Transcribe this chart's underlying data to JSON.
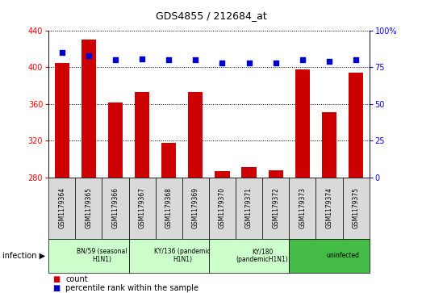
{
  "title": "GDS4855 / 212684_at",
  "samples": [
    "GSM1179364",
    "GSM1179365",
    "GSM1179366",
    "GSM1179367",
    "GSM1179368",
    "GSM1179369",
    "GSM1179370",
    "GSM1179371",
    "GSM1179372",
    "GSM1179373",
    "GSM1179374",
    "GSM1179375"
  ],
  "counts": [
    405,
    430,
    362,
    373,
    318,
    373,
    287,
    291,
    288,
    398,
    351,
    394
  ],
  "percentiles": [
    85,
    83,
    80,
    81,
    80,
    80,
    78,
    78,
    78,
    80,
    79,
    80
  ],
  "ylim_left": [
    280,
    440
  ],
  "ylim_right": [
    0,
    100
  ],
  "yticks_left": [
    280,
    320,
    360,
    400,
    440
  ],
  "yticks_right": [
    0,
    25,
    50,
    75,
    100
  ],
  "bar_color": "#cc0000",
  "dot_color": "#0000cc",
  "groups": [
    {
      "label": "BN/59 (seasonal\nH1N1)",
      "start": 0,
      "end": 3,
      "color": "#ccffcc"
    },
    {
      "label": "KY/136 (pandemic\nH1N1)",
      "start": 3,
      "end": 6,
      "color": "#ccffcc"
    },
    {
      "label": "KY/180\n(pandemicH1N1)",
      "start": 6,
      "end": 9,
      "color": "#ccffcc"
    },
    {
      "label": "uninfected",
      "start": 9,
      "end": 12,
      "color": "#44bb44"
    }
  ],
  "infection_label": "infection",
  "legend_count_label": "count",
  "legend_percentile_label": "percentile rank within the sample",
  "background_color": "#ffffff",
  "grid_color": "#000000"
}
